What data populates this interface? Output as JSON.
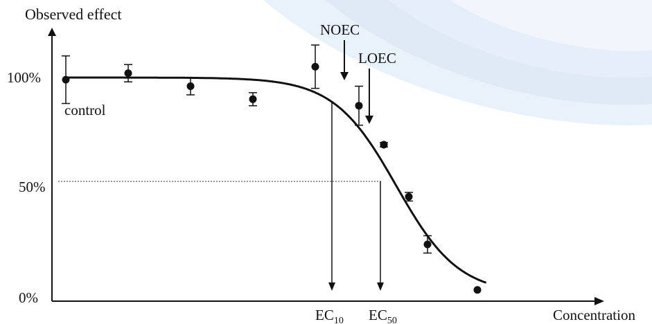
{
  "chart_data": {
    "type": "scatter",
    "title": "",
    "ylabel": "Observed effect",
    "xlabel": "Concentration",
    "ylim": [
      0,
      100
    ],
    "y_ticks": [
      {
        "value": 100,
        "label": "100%"
      },
      {
        "value": 50,
        "label": "50%"
      },
      {
        "value": 0,
        "label": "0%"
      }
    ],
    "points": [
      {
        "x": 1,
        "y": 99,
        "err": 11
      },
      {
        "x": 2,
        "y": 102,
        "err": 4
      },
      {
        "x": 3,
        "y": 96,
        "err": 4
      },
      {
        "x": 4,
        "y": 90,
        "err": 3
      },
      {
        "x": 5,
        "y": 105,
        "err": 10
      },
      {
        "x": 5.7,
        "y": 87,
        "err": 9
      },
      {
        "x": 6.1,
        "y": 69,
        "err": 1
      },
      {
        "x": 6.5,
        "y": 45,
        "err": 2
      },
      {
        "x": 6.8,
        "y": 23,
        "err": 4
      },
      {
        "x": 7.6,
        "y": 2,
        "err": 0
      }
    ],
    "fit_curve": {
      "type": "sigmoid",
      "top": 100,
      "bottom": 0,
      "ec50_x": 6.3,
      "slope": 0.5
    },
    "reference_line": {
      "y": 50,
      "style": "dotted"
    },
    "annotations": {
      "control": "control",
      "noec": {
        "label": "NOEC",
        "x": 5.7
      },
      "loec": {
        "label": "LOEC",
        "x": 6.1
      },
      "ec10": {
        "base": "EC",
        "sub": "10",
        "x": 5.3
      },
      "ec50": {
        "base": "EC",
        "sub": "50",
        "x": 6.3
      }
    }
  },
  "colors": {
    "ink": "#111111",
    "bg_wave": "#dce8f5"
  }
}
